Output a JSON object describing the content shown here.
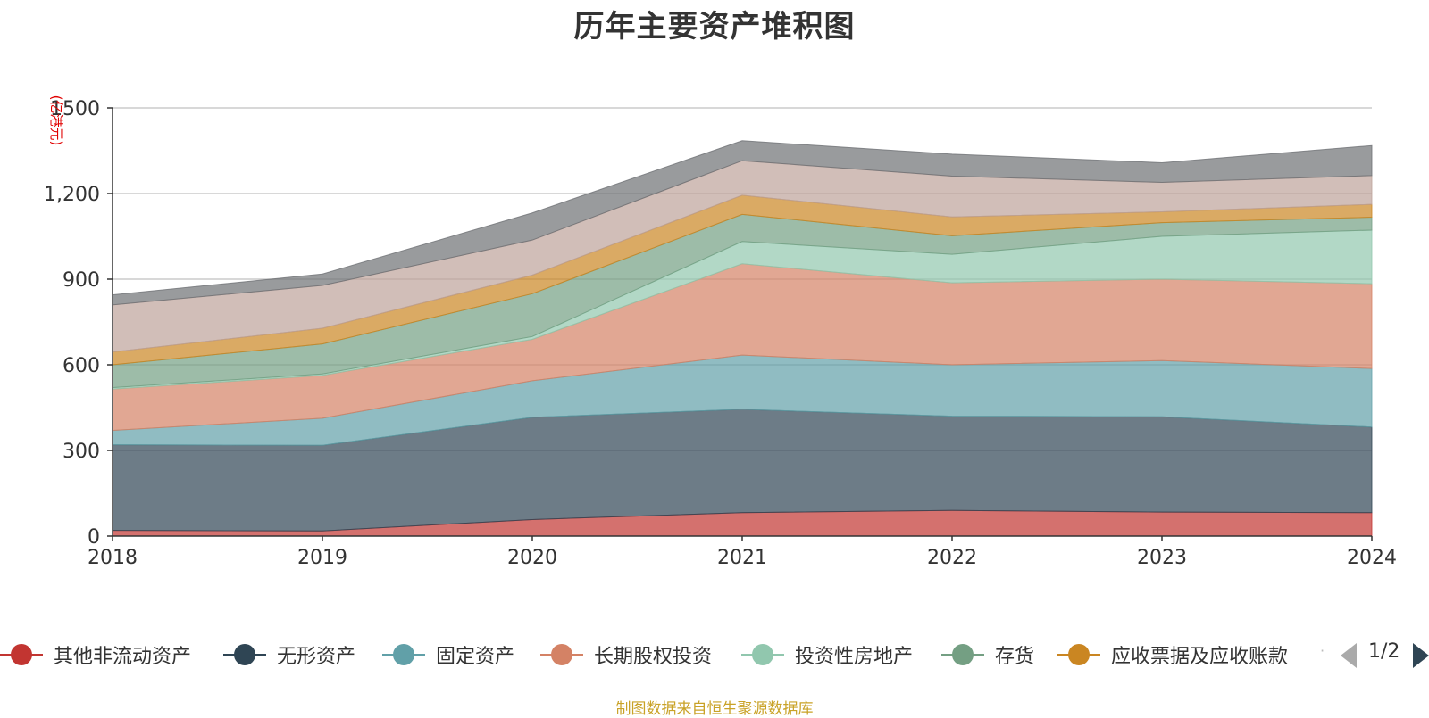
{
  "chart_data": {
    "type": "area",
    "stacked": true,
    "title": "历年主要资产堆积图",
    "ylabel": "(亿港元)",
    "xlabel": "",
    "x": [
      "2018",
      "2019",
      "2020",
      "2021",
      "2022",
      "2023",
      "2024"
    ],
    "ylim": [
      0,
      1500
    ],
    "yticks": [
      0,
      300,
      600,
      900,
      1200,
      1500
    ],
    "ytick_labels": [
      "0",
      "300",
      "600",
      "900",
      "1,200",
      "1500"
    ],
    "grid": true,
    "legend_position": "bottom",
    "series": [
      {
        "name": "其他非流动资产",
        "color": "#c23531",
        "values": [
          20,
          18,
          58,
          82,
          90,
          84,
          82
        ]
      },
      {
        "name": "无形资产",
        "color": "#2f4554",
        "values": [
          300,
          300,
          358,
          362,
          330,
          334,
          300
        ]
      },
      {
        "name": "固定资产",
        "color": "#61a0a8",
        "values": [
          50,
          95,
          128,
          190,
          180,
          197,
          205
        ]
      },
      {
        "name": "长期股权投资",
        "color": "#d48265",
        "values": [
          145,
          150,
          145,
          320,
          287,
          285,
          297
        ]
      },
      {
        "name": "投资性房地产",
        "color": "#91c7ae",
        "values": [
          5,
          5,
          10,
          78,
          100,
          150,
          188
        ]
      },
      {
        "name": "存货",
        "color": "#749f83",
        "values": [
          80,
          105,
          150,
          95,
          65,
          48,
          45
        ]
      },
      {
        "name": "应收票据及应收账款",
        "color": "#ca8622",
        "values": [
          45,
          55,
          65,
          67,
          66,
          38,
          45
        ]
      },
      {
        "name": "",
        "color": "#bda29a",
        "values": [
          165,
          150,
          123,
          121,
          143,
          103,
          101
        ]
      },
      {
        "name": "",
        "color": "#6e7074",
        "values": [
          35,
          40,
          95,
          70,
          77,
          69,
          105
        ]
      }
    ]
  },
  "legend": {
    "items": [
      {
        "label": "其他非流动资产",
        "color": "#c23531"
      },
      {
        "label": "无形资产",
        "color": "#2f4554"
      },
      {
        "label": "固定资产",
        "color": "#61a0a8"
      },
      {
        "label": "长期股权投资",
        "color": "#d48265"
      },
      {
        "label": "投资性房地产",
        "color": "#91c7ae"
      },
      {
        "label": "存货",
        "color": "#749f83"
      },
      {
        "label": "应收票据及应收账款",
        "color": "#ca8622"
      }
    ],
    "pager": "1/2"
  },
  "footer": {
    "source": "制图数据来自恒生聚源数据库"
  }
}
